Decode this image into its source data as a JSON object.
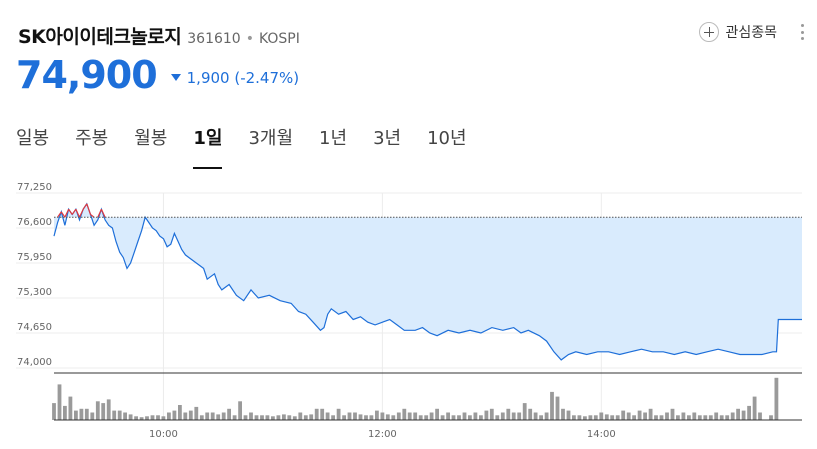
{
  "stock": {
    "name": "SK아이이테크놀로지",
    "code": "361610",
    "separator": "•",
    "exchange": "KOSPI",
    "price": "74,900",
    "change": "1,900 (-2.47%)"
  },
  "actions": {
    "watch_label": "관심종목",
    "watch_icon": "plus-icon",
    "more_icon": "more-vertical-icon"
  },
  "tabs": [
    {
      "label": "일봉",
      "active": false
    },
    {
      "label": "주봉",
      "active": false
    },
    {
      "label": "월봉",
      "active": false
    },
    {
      "label": "1일",
      "active": true
    },
    {
      "label": "3개월",
      "active": false
    },
    {
      "label": "1년",
      "active": false
    },
    {
      "label": "3년",
      "active": false
    },
    {
      "label": "10년",
      "active": false
    }
  ],
  "colors": {
    "price_down": "#1e6fd9",
    "line": "#1e6fd9",
    "fill": "#d9ebfd",
    "above_prev": "#e0383e",
    "volume": "#9a9a9a",
    "prev_close_line": "#555555"
  },
  "chart_data": {
    "type": "line",
    "prev_close": 76800,
    "ylim": [
      74000,
      77250
    ],
    "y_ticks": [
      "77,250",
      "76,600",
      "75,950",
      "75,300",
      "74,650",
      "74,000"
    ],
    "y_tick_values": [
      77250,
      76600,
      75950,
      75300,
      74650,
      74000
    ],
    "x_ticks": [
      "10:00",
      "12:00",
      "14:00"
    ],
    "x_tick_minutes": [
      60,
      180,
      300
    ],
    "xlim": [
      0,
      410
    ],
    "grid": true,
    "series": [
      {
        "points": [
          [
            0,
            76450
          ],
          [
            2,
            76700
          ],
          [
            4,
            76900
          ],
          [
            6,
            76650
          ],
          [
            8,
            76950
          ],
          [
            10,
            76850
          ],
          [
            12,
            76950
          ],
          [
            14,
            76750
          ],
          [
            16,
            76950
          ],
          [
            18,
            77050
          ],
          [
            20,
            76850
          ],
          [
            22,
            76650
          ],
          [
            24,
            76750
          ],
          [
            26,
            76950
          ],
          [
            28,
            76750
          ],
          [
            30,
            76650
          ],
          [
            32,
            76600
          ],
          [
            34,
            76350
          ],
          [
            36,
            76150
          ],
          [
            38,
            76050
          ],
          [
            40,
            75850
          ],
          [
            42,
            75950
          ],
          [
            44,
            76150
          ],
          [
            46,
            76350
          ],
          [
            48,
            76550
          ],
          [
            50,
            76800
          ],
          [
            52,
            76700
          ],
          [
            54,
            76600
          ],
          [
            56,
            76550
          ],
          [
            58,
            76450
          ],
          [
            60,
            76400
          ],
          [
            62,
            76250
          ],
          [
            64,
            76300
          ],
          [
            66,
            76500
          ],
          [
            68,
            76350
          ],
          [
            70,
            76200
          ],
          [
            72,
            76100
          ],
          [
            74,
            76050
          ],
          [
            78,
            75950
          ],
          [
            82,
            75850
          ],
          [
            84,
            75650
          ],
          [
            88,
            75750
          ],
          [
            90,
            75550
          ],
          [
            92,
            75450
          ],
          [
            96,
            75550
          ],
          [
            100,
            75350
          ],
          [
            104,
            75250
          ],
          [
            108,
            75450
          ],
          [
            112,
            75300
          ],
          [
            118,
            75350
          ],
          [
            124,
            75250
          ],
          [
            130,
            75200
          ],
          [
            134,
            75050
          ],
          [
            138,
            75000
          ],
          [
            142,
            74850
          ],
          [
            146,
            74700
          ],
          [
            148,
            74750
          ],
          [
            150,
            75000
          ],
          [
            152,
            75100
          ],
          [
            156,
            75000
          ],
          [
            160,
            75050
          ],
          [
            164,
            74900
          ],
          [
            168,
            74950
          ],
          [
            172,
            74850
          ],
          [
            176,
            74800
          ],
          [
            180,
            74850
          ],
          [
            184,
            74900
          ],
          [
            188,
            74800
          ],
          [
            192,
            74700
          ],
          [
            198,
            74700
          ],
          [
            202,
            74750
          ],
          [
            206,
            74650
          ],
          [
            210,
            74600
          ],
          [
            216,
            74700
          ],
          [
            222,
            74650
          ],
          [
            228,
            74700
          ],
          [
            234,
            74650
          ],
          [
            240,
            74750
          ],
          [
            246,
            74700
          ],
          [
            252,
            74750
          ],
          [
            256,
            74650
          ],
          [
            260,
            74700
          ],
          [
            266,
            74600
          ],
          [
            270,
            74500
          ],
          [
            274,
            74300
          ],
          [
            278,
            74150
          ],
          [
            282,
            74250
          ],
          [
            286,
            74300
          ],
          [
            292,
            74250
          ],
          [
            298,
            74300
          ],
          [
            304,
            74300
          ],
          [
            310,
            74250
          ],
          [
            316,
            74300
          ],
          [
            322,
            74350
          ],
          [
            328,
            74300
          ],
          [
            334,
            74300
          ],
          [
            340,
            74250
          ],
          [
            346,
            74300
          ],
          [
            352,
            74250
          ],
          [
            358,
            74300
          ],
          [
            364,
            74350
          ],
          [
            370,
            74300
          ],
          [
            376,
            74250
          ],
          [
            382,
            74250
          ],
          [
            388,
            74250
          ],
          [
            394,
            74300
          ],
          [
            396,
            74300
          ],
          [
            397,
            74900
          ],
          [
            410,
            74900
          ]
        ]
      }
    ],
    "volume": [
      {
        "t": 0,
        "v": 18
      },
      {
        "t": 3,
        "v": 38
      },
      {
        "t": 6,
        "v": 15
      },
      {
        "t": 9,
        "v": 25
      },
      {
        "t": 12,
        "v": 10
      },
      {
        "t": 15,
        "v": 12
      },
      {
        "t": 18,
        "v": 12
      },
      {
        "t": 21,
        "v": 8
      },
      {
        "t": 24,
        "v": 20
      },
      {
        "t": 27,
        "v": 18
      },
      {
        "t": 30,
        "v": 22
      },
      {
        "t": 33,
        "v": 10
      },
      {
        "t": 36,
        "v": 10
      },
      {
        "t": 39,
        "v": 8
      },
      {
        "t": 42,
        "v": 6
      },
      {
        "t": 45,
        "v": 4
      },
      {
        "t": 48,
        "v": 3
      },
      {
        "t": 51,
        "v": 4
      },
      {
        "t": 54,
        "v": 5
      },
      {
        "t": 57,
        "v": 5
      },
      {
        "t": 60,
        "v": 4
      },
      {
        "t": 63,
        "v": 8
      },
      {
        "t": 66,
        "v": 10
      },
      {
        "t": 69,
        "v": 16
      },
      {
        "t": 72,
        "v": 8
      },
      {
        "t": 75,
        "v": 10
      },
      {
        "t": 78,
        "v": 14
      },
      {
        "t": 81,
        "v": 5
      },
      {
        "t": 84,
        "v": 8
      },
      {
        "t": 87,
        "v": 8
      },
      {
        "t": 90,
        "v": 6
      },
      {
        "t": 93,
        "v": 8
      },
      {
        "t": 96,
        "v": 12
      },
      {
        "t": 99,
        "v": 5
      },
      {
        "t": 102,
        "v": 20
      },
      {
        "t": 105,
        "v": 5
      },
      {
        "t": 108,
        "v": 8
      },
      {
        "t": 111,
        "v": 5
      },
      {
        "t": 114,
        "v": 5
      },
      {
        "t": 117,
        "v": 5
      },
      {
        "t": 120,
        "v": 4
      },
      {
        "t": 123,
        "v": 5
      },
      {
        "t": 126,
        "v": 6
      },
      {
        "t": 129,
        "v": 5
      },
      {
        "t": 132,
        "v": 4
      },
      {
        "t": 135,
        "v": 8
      },
      {
        "t": 138,
        "v": 5
      },
      {
        "t": 141,
        "v": 6
      },
      {
        "t": 144,
        "v": 12
      },
      {
        "t": 147,
        "v": 12
      },
      {
        "t": 150,
        "v": 8
      },
      {
        "t": 153,
        "v": 5
      },
      {
        "t": 156,
        "v": 12
      },
      {
        "t": 159,
        "v": 5
      },
      {
        "t": 162,
        "v": 8
      },
      {
        "t": 165,
        "v": 8
      },
      {
        "t": 168,
        "v": 6
      },
      {
        "t": 171,
        "v": 5
      },
      {
        "t": 174,
        "v": 5
      },
      {
        "t": 177,
        "v": 10
      },
      {
        "t": 180,
        "v": 8
      },
      {
        "t": 183,
        "v": 6
      },
      {
        "t": 186,
        "v": 5
      },
      {
        "t": 189,
        "v": 8
      },
      {
        "t": 192,
        "v": 12
      },
      {
        "t": 195,
        "v": 8
      },
      {
        "t": 198,
        "v": 8
      },
      {
        "t": 201,
        "v": 5
      },
      {
        "t": 204,
        "v": 5
      },
      {
        "t": 207,
        "v": 8
      },
      {
        "t": 210,
        "v": 12
      },
      {
        "t": 213,
        "v": 5
      },
      {
        "t": 216,
        "v": 8
      },
      {
        "t": 219,
        "v": 5
      },
      {
        "t": 222,
        "v": 5
      },
      {
        "t": 225,
        "v": 8
      },
      {
        "t": 228,
        "v": 5
      },
      {
        "t": 231,
        "v": 8
      },
      {
        "t": 234,
        "v": 5
      },
      {
        "t": 237,
        "v": 10
      },
      {
        "t": 240,
        "v": 12
      },
      {
        "t": 243,
        "v": 5
      },
      {
        "t": 246,
        "v": 8
      },
      {
        "t": 249,
        "v": 12
      },
      {
        "t": 252,
        "v": 8
      },
      {
        "t": 255,
        "v": 8
      },
      {
        "t": 258,
        "v": 18
      },
      {
        "t": 261,
        "v": 12
      },
      {
        "t": 264,
        "v": 8
      },
      {
        "t": 267,
        "v": 5
      },
      {
        "t": 270,
        "v": 8
      },
      {
        "t": 273,
        "v": 30
      },
      {
        "t": 276,
        "v": 25
      },
      {
        "t": 279,
        "v": 12
      },
      {
        "t": 282,
        "v": 10
      },
      {
        "t": 285,
        "v": 5
      },
      {
        "t": 288,
        "v": 5
      },
      {
        "t": 291,
        "v": 4
      },
      {
        "t": 294,
        "v": 5
      },
      {
        "t": 297,
        "v": 5
      },
      {
        "t": 300,
        "v": 8
      },
      {
        "t": 303,
        "v": 6
      },
      {
        "t": 306,
        "v": 5
      },
      {
        "t": 309,
        "v": 5
      },
      {
        "t": 312,
        "v": 10
      },
      {
        "t": 315,
        "v": 8
      },
      {
        "t": 318,
        "v": 5
      },
      {
        "t": 321,
        "v": 10
      },
      {
        "t": 324,
        "v": 8
      },
      {
        "t": 327,
        "v": 12
      },
      {
        "t": 330,
        "v": 5
      },
      {
        "t": 333,
        "v": 5
      },
      {
        "t": 336,
        "v": 8
      },
      {
        "t": 339,
        "v": 12
      },
      {
        "t": 342,
        "v": 5
      },
      {
        "t": 345,
        "v": 8
      },
      {
        "t": 348,
        "v": 5
      },
      {
        "t": 351,
        "v": 8
      },
      {
        "t": 354,
        "v": 5
      },
      {
        "t": 357,
        "v": 5
      },
      {
        "t": 360,
        "v": 5
      },
      {
        "t": 363,
        "v": 8
      },
      {
        "t": 366,
        "v": 5
      },
      {
        "t": 369,
        "v": 5
      },
      {
        "t": 372,
        "v": 8
      },
      {
        "t": 375,
        "v": 12
      },
      {
        "t": 378,
        "v": 10
      },
      {
        "t": 381,
        "v": 15
      },
      {
        "t": 384,
        "v": 25
      },
      {
        "t": 387,
        "v": 8
      },
      {
        "t": 393,
        "v": 5
      },
      {
        "t": 396,
        "v": 45
      }
    ],
    "volume_max": 48
  }
}
